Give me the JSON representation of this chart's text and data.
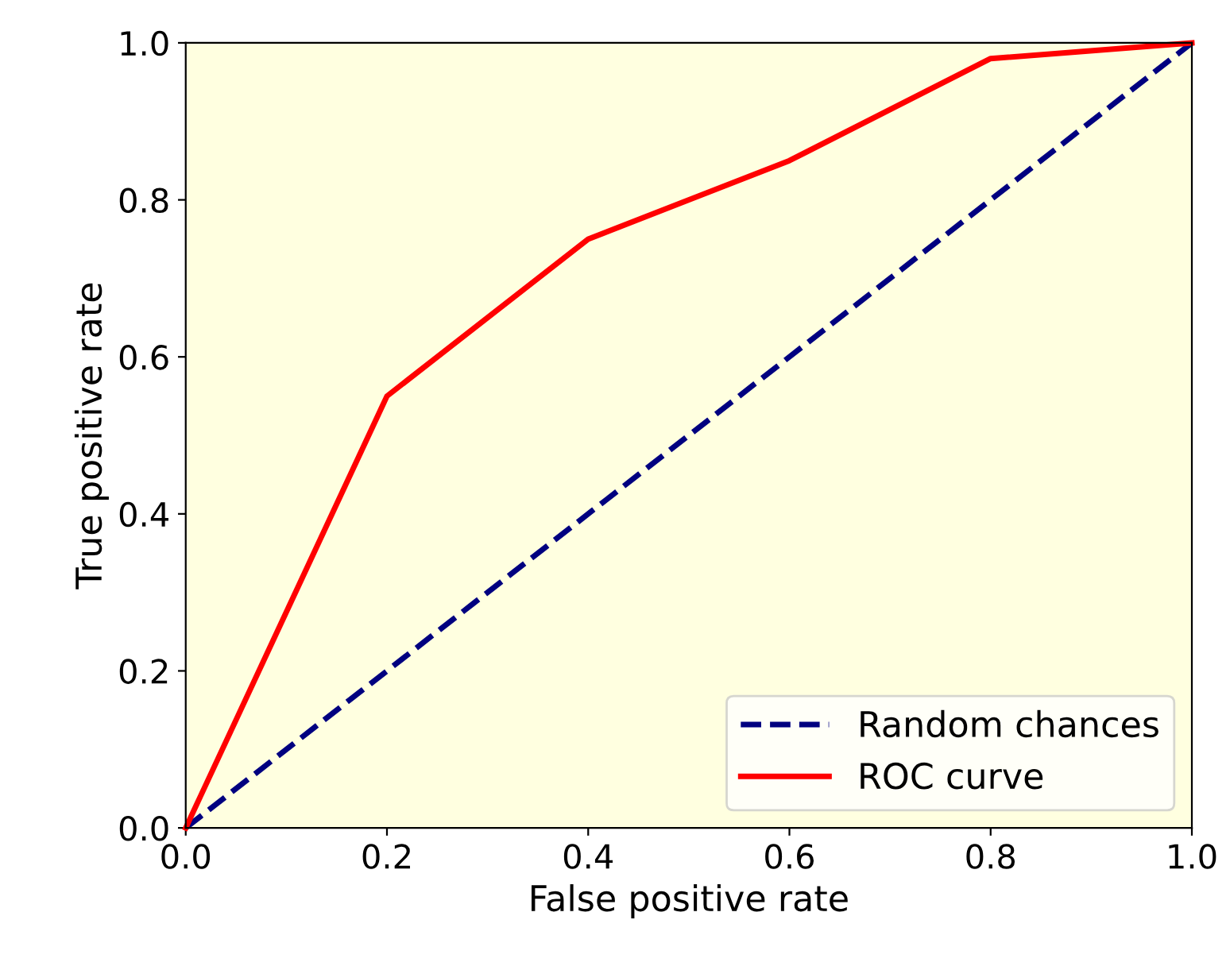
{
  "chart_data": {
    "type": "line",
    "xlabel": "False positive rate",
    "ylabel": "True positive rate",
    "xlim": [
      0.0,
      1.0
    ],
    "ylim": [
      0.0,
      1.0
    ],
    "xticks": [
      {
        "value": 0,
        "label": "0.0"
      },
      {
        "value": 0.2,
        "label": "0.2"
      },
      {
        "value": 0.4,
        "label": "0.4"
      },
      {
        "value": 0.6,
        "label": "0.6"
      },
      {
        "value": 0.8,
        "label": "0.8"
      },
      {
        "value": 1,
        "label": "1.0"
      }
    ],
    "yticks": [
      {
        "value": 0,
        "label": "0.0"
      },
      {
        "value": 0.2,
        "label": "0.2"
      },
      {
        "value": 0.4,
        "label": "0.4"
      },
      {
        "value": 0.6,
        "label": "0.6"
      },
      {
        "value": 0.8,
        "label": "0.8"
      },
      {
        "value": 1,
        "label": "1.0"
      }
    ],
    "series": [
      {
        "name": "Random chances",
        "color": "#000080",
        "x": [
          0,
          1
        ],
        "values": [
          0,
          1
        ],
        "line_style": "dashed"
      },
      {
        "name": "ROC curve",
        "color": "#ff0000",
        "x": [
          0,
          0.2,
          0.4,
          0.6,
          0.8,
          1.0
        ],
        "values": [
          0,
          0.55,
          0.75,
          0.85,
          0.98,
          1.0
        ],
        "line_style": "solid"
      }
    ],
    "legend": "bottom right",
    "grid": false
  }
}
